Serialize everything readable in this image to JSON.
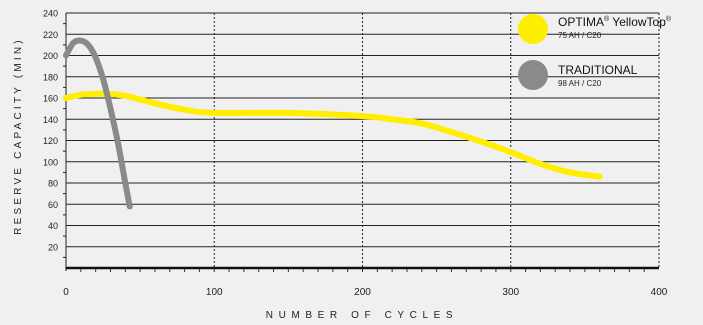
{
  "chart_data": {
    "type": "line",
    "xlabel": "NUMBER OF CYCLES",
    "ylabel": "RESERVE CAPACITY (MIN)",
    "xlim": [
      0,
      400
    ],
    "ylim": [
      0,
      240
    ],
    "x_ticks": [
      "0",
      "100",
      "200",
      "300",
      "400"
    ],
    "y_ticks": [
      "20",
      "40",
      "60",
      "80",
      "100",
      "120",
      "140",
      "160",
      "180",
      "200",
      "220",
      "240"
    ],
    "series": [
      {
        "name": "OPTIMA® YellowTop®",
        "subtitle": "75 AH / C20",
        "color": "#ffee00",
        "x": [
          0,
          10,
          25,
          40,
          60,
          80,
          100,
          150,
          200,
          220,
          240,
          260,
          280,
          300,
          320,
          340,
          360
        ],
        "y": [
          160,
          163,
          164,
          162,
          155,
          149,
          146,
          146,
          143,
          140,
          136,
          128,
          119,
          109,
          98,
          90,
          86
        ]
      },
      {
        "name": "TRADITIONAL",
        "subtitle": "98 AH / C20",
        "color": "#8a8a8a",
        "x": [
          0,
          5,
          10,
          15,
          20,
          25,
          30,
          35,
          40,
          43
        ],
        "y": [
          200,
          212,
          214,
          210,
          198,
          178,
          150,
          118,
          80,
          58
        ]
      }
    ],
    "grid": true,
    "legend": "top-right"
  }
}
